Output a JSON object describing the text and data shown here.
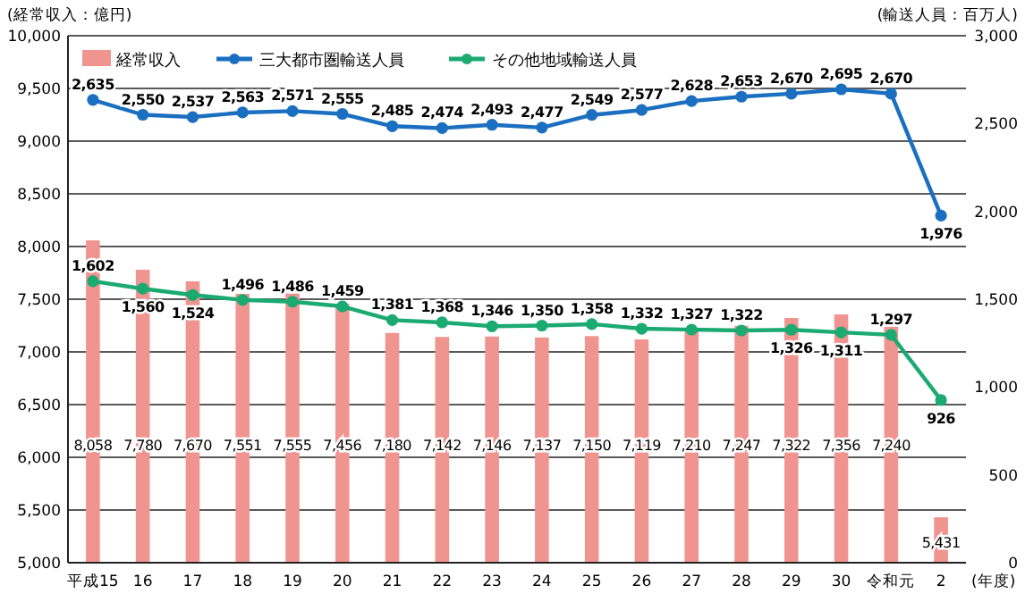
{
  "chart_data": {
    "type": "bar",
    "ylabel": "(経常収入：億円)",
    "y2label": "(輸送人員：百万人)",
    "xlabel": "(年度)",
    "categories": [
      "平成15",
      "16",
      "17",
      "18",
      "19",
      "20",
      "21",
      "22",
      "23",
      "24",
      "25",
      "26",
      "27",
      "28",
      "29",
      "30",
      "令和元",
      "2"
    ],
    "series": [
      {
        "name": "経常収入",
        "color": "#f09490",
        "values": [
          8058,
          7780,
          7670,
          7551,
          7555,
          7456,
          7180,
          7142,
          7146,
          7137,
          7150,
          7119,
          7210,
          7247,
          7322,
          7356,
          7240,
          5431
        ],
        "value_labels": [
          "8,058",
          "7,780",
          "7,670",
          "7,551",
          "7,555",
          "7,456",
          "7,180",
          "7,142",
          "7,146",
          "7,137",
          "7,150",
          "7,119",
          "7,210",
          "7,247",
          "7,322",
          "7,356",
          "7,240",
          "5,431"
        ]
      },
      {
        "name": "三大都市圏輸送人員",
        "type": "line",
        "axis": "y2",
        "color": "#1a6fc0",
        "values": [
          2635,
          2550,
          2537,
          2563,
          2571,
          2555,
          2485,
          2474,
          2493,
          2477,
          2549,
          2577,
          2628,
          2653,
          2670,
          2695,
          2670,
          1976
        ],
        "value_labels": [
          "2,635",
          "2,550",
          "2,537",
          "2,563",
          "2,571",
          "2,555",
          "2,485",
          "2,474",
          "2,493",
          "2,477",
          "2,549",
          "2,577",
          "2,628",
          "2,653",
          "2,670",
          "2,695",
          "2,670",
          "1,976"
        ]
      },
      {
        "name": "その他地域輸送人員",
        "type": "line",
        "axis": "y2",
        "color": "#1aaa72",
        "values": [
          1602,
          1560,
          1524,
          1496,
          1486,
          1459,
          1381,
          1368,
          1346,
          1350,
          1358,
          1332,
          1327,
          1322,
          1326,
          1311,
          1297,
          926
        ],
        "value_labels": [
          "1,602",
          "1,560",
          "1,524",
          "1,496",
          "1,486",
          "1,459",
          "1,381",
          "1,368",
          "1,346",
          "1,350",
          "1,358",
          "1,332",
          "1,327",
          "1,322",
          "1,326",
          "1,311",
          "1,297",
          "926"
        ]
      }
    ],
    "ylim": [
      5000,
      10000
    ],
    "yticks": [
      {
        "value": 5000,
        "label": "5,000"
      },
      {
        "value": 5500,
        "label": "5,500"
      },
      {
        "value": 6000,
        "label": "6,000"
      },
      {
        "value": 6500,
        "label": "6,500"
      },
      {
        "value": 7000,
        "label": "7,000"
      },
      {
        "value": 7500,
        "label": "7,500"
      },
      {
        "value": 8000,
        "label": "8,000"
      },
      {
        "value": 8500,
        "label": "8,500"
      },
      {
        "value": 9000,
        "label": "9,000"
      },
      {
        "value": 9500,
        "label": "9,500"
      },
      {
        "value": 10000,
        "label": "10,000"
      }
    ],
    "y2lim": [
      0,
      3000
    ],
    "y2ticks": [
      0,
      500,
      {
        "value": 1000,
        "label": "1,000"
      },
      {
        "value": 1500,
        "label": "1,500"
      },
      {
        "value": 2000,
        "label": "2,000"
      },
      {
        "value": 2500,
        "label": "2,500"
      },
      {
        "value": 3000,
        "label": "3,000"
      }
    ],
    "grid": "y",
    "legend": "top left",
    "marker": "circle"
  }
}
